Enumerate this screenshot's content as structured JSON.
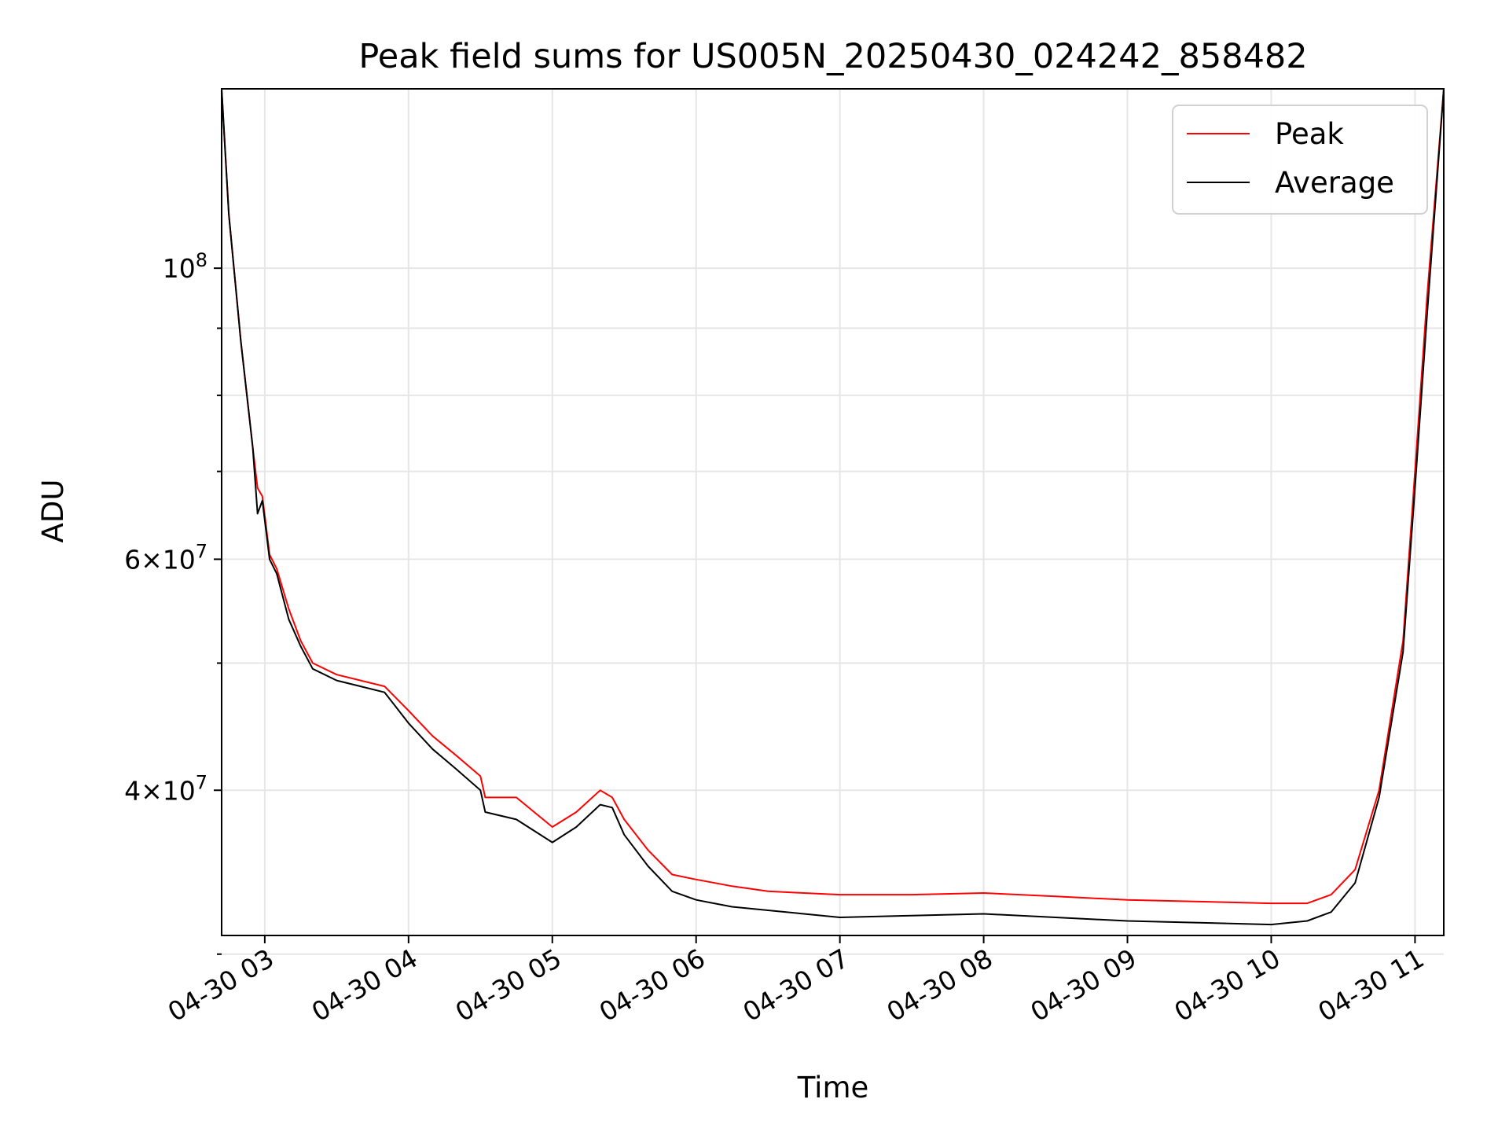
{
  "chart_data": {
    "type": "line",
    "title": "Peak field sums for US005N_20250430_024242_858482",
    "xlabel": "Time",
    "ylabel": "ADU",
    "x_axis": {
      "scale": "time",
      "range": [
        "2025-04-30T02:42",
        "2025-04-30T11:12"
      ],
      "ticks": [
        {
          "label": "04-30 03",
          "value": "2025-04-30T03:00"
        },
        {
          "label": "04-30 04",
          "value": "2025-04-30T04:00"
        },
        {
          "label": "04-30 05",
          "value": "2025-04-30T05:00"
        },
        {
          "label": "04-30 06",
          "value": "2025-04-30T06:00"
        },
        {
          "label": "04-30 07",
          "value": "2025-04-30T07:00"
        },
        {
          "label": "04-30 08",
          "value": "2025-04-30T08:00"
        },
        {
          "label": "04-30 09",
          "value": "2025-04-30T09:00"
        },
        {
          "label": "04-30 10",
          "value": "2025-04-30T10:00"
        },
        {
          "label": "04-30 11",
          "value": "2025-04-30T11:00"
        }
      ]
    },
    "y_axis": {
      "scale": "log",
      "range": [
        31000000,
        137000000
      ],
      "major_ticks": [
        {
          "value": 100000000,
          "mantissa": "",
          "exponent": "8"
        },
        {
          "value": 60000000,
          "mantissa": "6",
          "exponent": "7"
        },
        {
          "value": 40000000,
          "mantissa": "4",
          "exponent": "7"
        }
      ],
      "minor_ticks": [
        30000000,
        50000000,
        70000000,
        80000000,
        90000000
      ]
    },
    "grid": true,
    "legend": {
      "placement": "top-right"
    },
    "series": [
      {
        "name": "Peak",
        "color": "#ff0000",
        "x": [
          "2025-04-30T02:42",
          "2025-04-30T02:45",
          "2025-04-30T02:50",
          "2025-04-30T02:55",
          "2025-04-30T02:57",
          "2025-04-30T02:59",
          "2025-04-30T03:02",
          "2025-04-30T03:05",
          "2025-04-30T03:10",
          "2025-04-30T03:15",
          "2025-04-30T03:20",
          "2025-04-30T03:30",
          "2025-04-30T03:40",
          "2025-04-30T03:50",
          "2025-04-30T04:00",
          "2025-04-30T04:10",
          "2025-04-30T04:20",
          "2025-04-30T04:30",
          "2025-04-30T04:32",
          "2025-04-30T04:45",
          "2025-04-30T05:00",
          "2025-04-30T05:10",
          "2025-04-30T05:20",
          "2025-04-30T05:25",
          "2025-04-30T05:30",
          "2025-04-30T05:40",
          "2025-04-30T05:50",
          "2025-04-30T06:00",
          "2025-04-30T06:15",
          "2025-04-30T06:30",
          "2025-04-30T06:45",
          "2025-04-30T07:00",
          "2025-04-30T07:30",
          "2025-04-30T08:00",
          "2025-04-30T08:30",
          "2025-04-30T09:00",
          "2025-04-30T09:30",
          "2025-04-30T10:00",
          "2025-04-30T10:15",
          "2025-04-30T10:25",
          "2025-04-30T10:35",
          "2025-04-30T10:45",
          "2025-04-30T10:55",
          "2025-04-30T11:00",
          "2025-04-30T11:05",
          "2025-04-30T11:12"
        ],
        "y": [
          137000000,
          110000000,
          88000000,
          73000000,
          68000000,
          67000000,
          60500000,
          59000000,
          55000000,
          52000000,
          50000000,
          49000000,
          48500000,
          48000000,
          46000000,
          44000000,
          42500000,
          41000000,
          39500000,
          39500000,
          37500000,
          38500000,
          40000000,
          39500000,
          38000000,
          36000000,
          34500000,
          34200000,
          33800000,
          33500000,
          33400000,
          33300000,
          33300000,
          33400000,
          33200000,
          33000000,
          32900000,
          32800000,
          32800000,
          33300000,
          34800000,
          40000000,
          52000000,
          70000000,
          95000000,
          137000000
        ]
      },
      {
        "name": "Average",
        "color": "#000000",
        "x": [
          "2025-04-30T02:42",
          "2025-04-30T02:45",
          "2025-04-30T02:50",
          "2025-04-30T02:55",
          "2025-04-30T02:57",
          "2025-04-30T02:59",
          "2025-04-30T03:02",
          "2025-04-30T03:05",
          "2025-04-30T03:10",
          "2025-04-30T03:15",
          "2025-04-30T03:20",
          "2025-04-30T03:30",
          "2025-04-30T03:40",
          "2025-04-30T03:50",
          "2025-04-30T04:00",
          "2025-04-30T04:10",
          "2025-04-30T04:20",
          "2025-04-30T04:30",
          "2025-04-30T04:32",
          "2025-04-30T04:45",
          "2025-04-30T05:00",
          "2025-04-30T05:10",
          "2025-04-30T05:20",
          "2025-04-30T05:25",
          "2025-04-30T05:30",
          "2025-04-30T05:40",
          "2025-04-30T05:50",
          "2025-04-30T06:00",
          "2025-04-30T06:15",
          "2025-04-30T06:30",
          "2025-04-30T06:45",
          "2025-04-30T07:00",
          "2025-04-30T07:30",
          "2025-04-30T08:00",
          "2025-04-30T08:30",
          "2025-04-30T09:00",
          "2025-04-30T09:30",
          "2025-04-30T10:00",
          "2025-04-30T10:15",
          "2025-04-30T10:25",
          "2025-04-30T10:35",
          "2025-04-30T10:45",
          "2025-04-30T10:55",
          "2025-04-30T11:00",
          "2025-04-30T11:05",
          "2025-04-30T11:12"
        ],
        "y": [
          137000000,
          110000000,
          88000000,
          73000000,
          65000000,
          66500000,
          60000000,
          58500000,
          54000000,
          51500000,
          49500000,
          48500000,
          48000000,
          47500000,
          45000000,
          43000000,
          41500000,
          40000000,
          38500000,
          38000000,
          36500000,
          37500000,
          39000000,
          38800000,
          37000000,
          35000000,
          33500000,
          33000000,
          32600000,
          32400000,
          32200000,
          32000000,
          32100000,
          32200000,
          32000000,
          31800000,
          31700000,
          31600000,
          31800000,
          32300000,
          34000000,
          39500000,
          51000000,
          68000000,
          92000000,
          137000000
        ]
      }
    ]
  }
}
